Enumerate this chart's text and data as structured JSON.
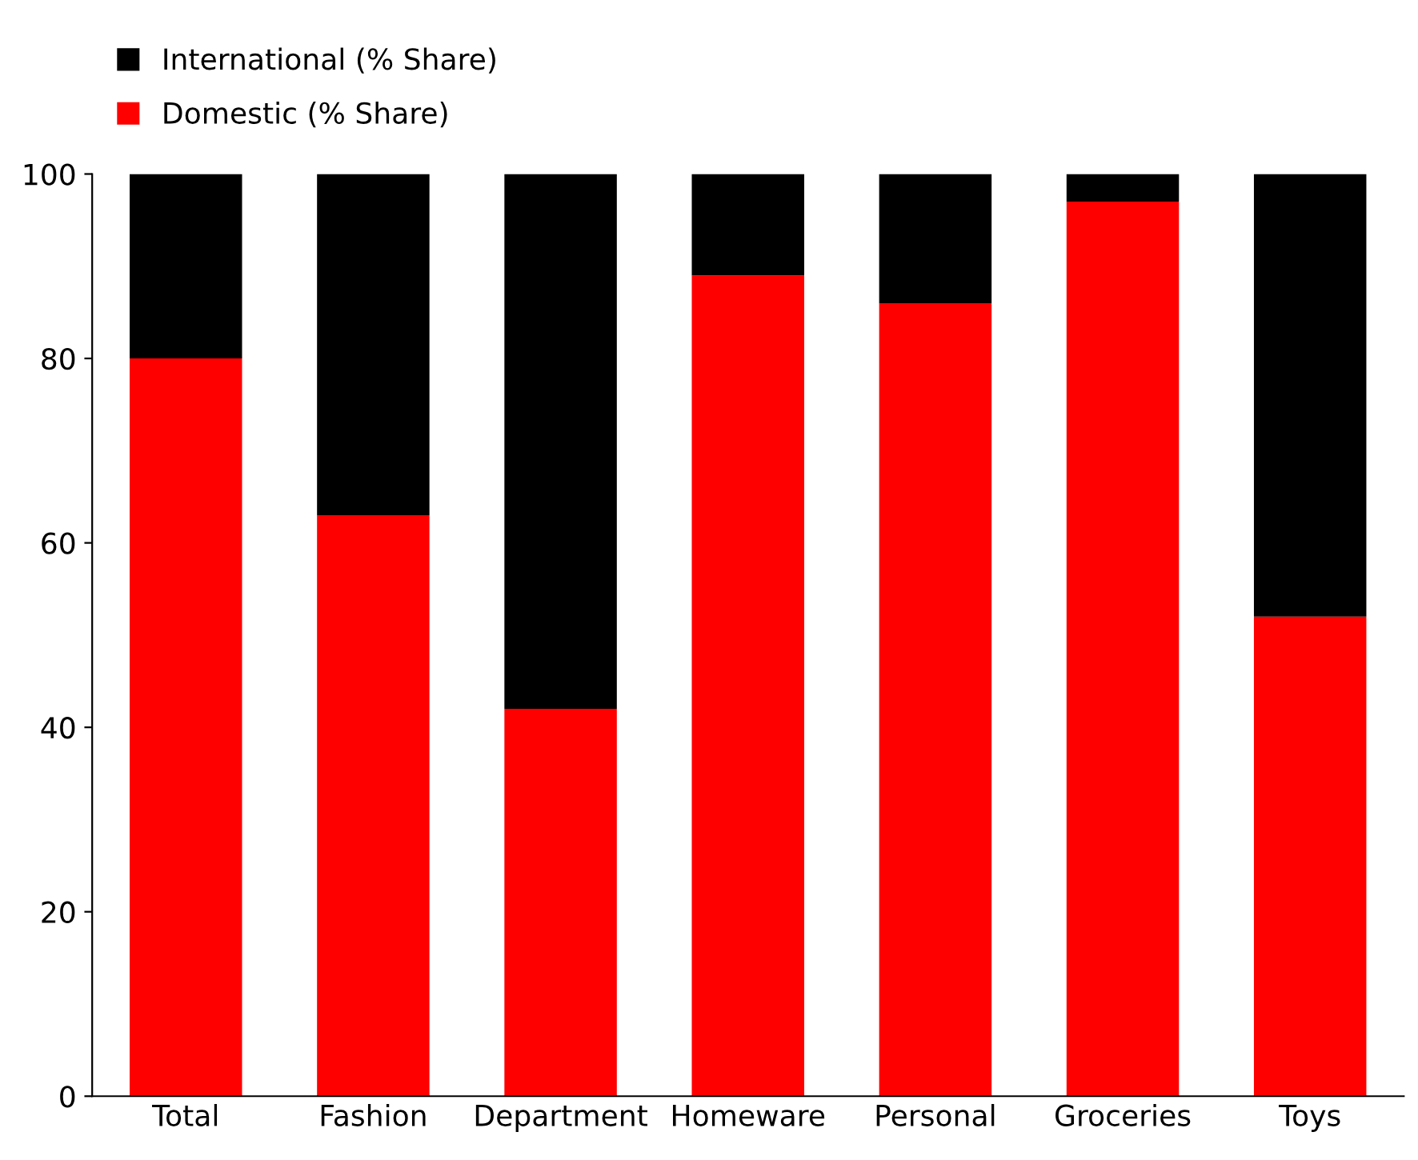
{
  "chart_data": {
    "type": "bar",
    "stacked": true,
    "categories": [
      "Total",
      "Fashion",
      "Department",
      "Homeware",
      "Personal",
      "Groceries",
      "Toys"
    ],
    "series": [
      {
        "name": "Domestic (% Share)",
        "color": "#ff0000",
        "values": [
          80,
          63,
          42,
          89,
          86,
          97,
          52
        ]
      },
      {
        "name": "International (% Share)",
        "color": "#000000",
        "values": [
          20,
          37,
          58,
          11,
          14,
          3,
          48
        ]
      }
    ],
    "ylim": [
      0,
      100
    ],
    "yticks": [
      0,
      20,
      40,
      60,
      80,
      100
    ],
    "grid": false,
    "legend": "top left"
  }
}
